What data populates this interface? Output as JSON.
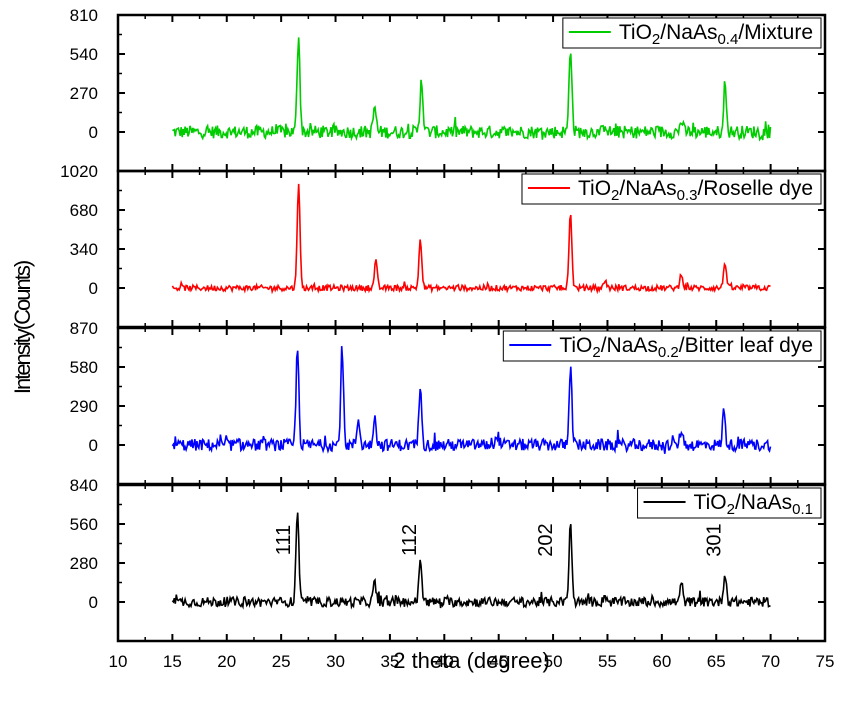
{
  "chart_data": {
    "type": "line",
    "xlabel": "2 theta (degree)",
    "ylabel": "Intensity(Counts)",
    "xlim": [
      10,
      75
    ],
    "x_ticks": [
      "10",
      "15",
      "20",
      "25",
      "30",
      "35",
      "40",
      "45",
      "50",
      "55",
      "60",
      "65",
      "70",
      "75"
    ],
    "panels": [
      {
        "legend": {
          "base": "TiO",
          "sub1": "2",
          "mid": "/NaAs",
          "sub2": "0.4",
          "tail": "/Mixture"
        },
        "color": "#00cc00",
        "ylim": [
          -270,
          810
        ],
        "y_ticks": [
          "810",
          "540",
          "270",
          "0"
        ],
        "y_tick_values": [
          810,
          540,
          270,
          0
        ],
        "noise": 45,
        "peaks": [
          [
            26.6,
            680
          ],
          [
            33.6,
            180
          ],
          [
            37.9,
            380
          ],
          [
            51.6,
            600
          ],
          [
            54.8,
            60
          ],
          [
            61.8,
            80
          ],
          [
            65.8,
            330
          ]
        ]
      },
      {
        "legend": {
          "base": "TiO",
          "sub1": "2",
          "mid": "/NaAs",
          "sub2": "0.3",
          "tail": "/Roselle dye"
        },
        "color": "#ff0000",
        "ylim": [
          -340,
          1020
        ],
        "y_ticks": [
          "1020",
          "680",
          "340",
          "0"
        ],
        "y_tick_values": [
          1020,
          680,
          340,
          0
        ],
        "noise": 25,
        "peaks": [
          [
            26.6,
            920
          ],
          [
            33.7,
            230
          ],
          [
            37.8,
            430
          ],
          [
            51.6,
            650
          ],
          [
            54.8,
            70
          ],
          [
            61.8,
            130
          ],
          [
            65.8,
            230
          ]
        ]
      },
      {
        "legend": {
          "base": "TiO",
          "sub1": "2",
          "mid": "/NaAs",
          "sub2": "0.2",
          "tail": "/Bitter leaf dye"
        },
        "color": "#0000ff",
        "ylim": [
          -290,
          870
        ],
        "y_ticks": [
          "870",
          "580",
          "290",
          "0"
        ],
        "y_tick_values": [
          870,
          580,
          290,
          0
        ],
        "noise": 45,
        "peaks": [
          [
            26.5,
            720
          ],
          [
            30.6,
            700
          ],
          [
            32.1,
            200
          ],
          [
            33.6,
            230
          ],
          [
            37.8,
            470
          ],
          [
            44.9,
            80
          ],
          [
            51.6,
            580
          ],
          [
            61.8,
            120
          ],
          [
            65.7,
            250
          ]
        ]
      },
      {
        "legend": {
          "base": "TiO",
          "sub1": "2",
          "mid": "/NaAs",
          "sub2": "0.1",
          "tail": ""
        },
        "color": "#000000",
        "ylim": [
          -280,
          840
        ],
        "y_ticks": [
          "840",
          "560",
          "280",
          "0"
        ],
        "y_tick_values": [
          840,
          560,
          280,
          0
        ],
        "noise": 35,
        "peaks": [
          [
            26.5,
            670
          ],
          [
            33.6,
            140
          ],
          [
            37.8,
            320
          ],
          [
            51.6,
            560
          ],
          [
            54.8,
            50
          ],
          [
            61.8,
            130
          ],
          [
            65.8,
            210
          ]
        ],
        "annotations": [
          {
            "text": "111",
            "x": 25.8
          },
          {
            "text": "112",
            "x": 37.4
          },
          {
            "text": "202",
            "x": 49.9
          },
          {
            "text": "301",
            "x": 65.4
          }
        ]
      }
    ]
  }
}
